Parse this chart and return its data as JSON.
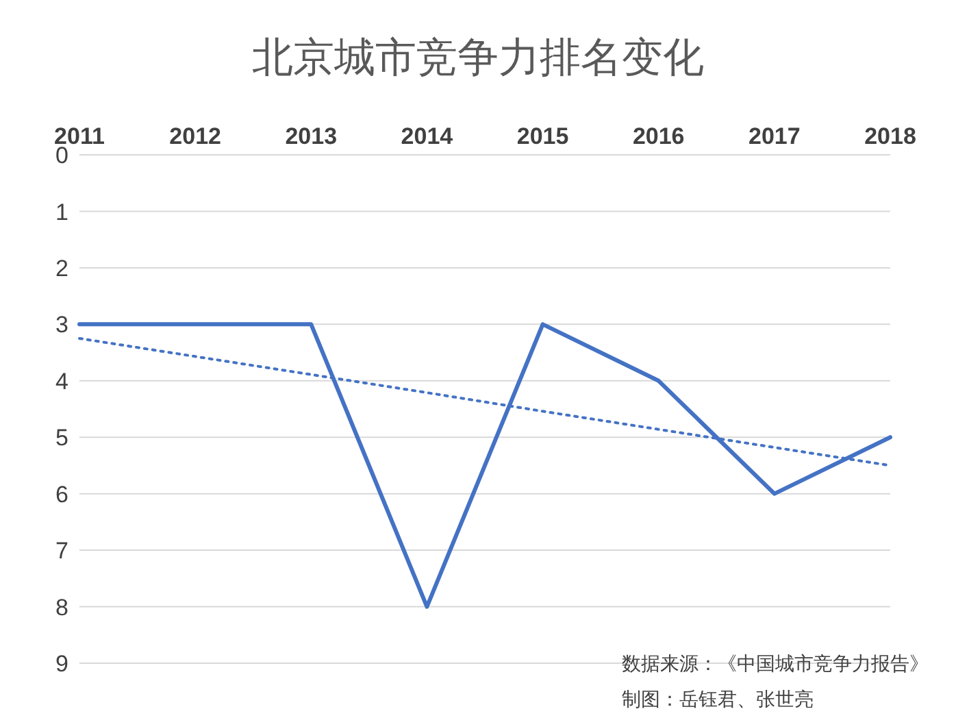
{
  "chart_data": {
    "type": "line",
    "title": "北京城市竞争力排名变化",
    "categories": [
      "2011",
      "2012",
      "2013",
      "2014",
      "2015",
      "2016",
      "2017",
      "2018"
    ],
    "series": [
      {
        "color": "#4472c4",
        "values": [
          3,
          3,
          3,
          8,
          3,
          4,
          6,
          5
        ],
        "line_style": "solid"
      },
      {
        "color": "#4472c4",
        "values": [
          3.25,
          3.57,
          3.89,
          4.21,
          4.54,
          4.86,
          5.18,
          5.5
        ],
        "line_style": "dotted"
      }
    ],
    "ylim": [
      9,
      0
    ],
    "yticks": [
      0,
      1,
      2,
      3,
      4,
      5,
      6,
      7,
      8,
      9
    ],
    "grid": "y",
    "marker": "none",
    "annotations": [
      "数据来源：《中国城市竞争力报告》",
      "制图：岳钰君、张世亮"
    ]
  }
}
